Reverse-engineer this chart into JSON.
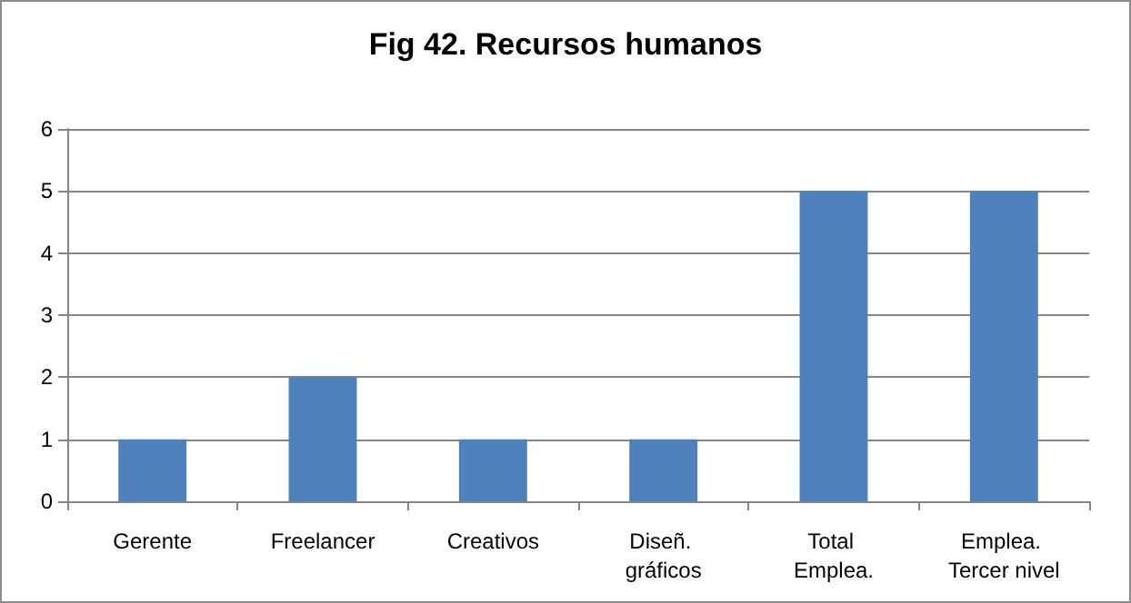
{
  "chart_data": {
    "type": "bar",
    "title": "Fig 42. Recursos humanos",
    "categories": [
      "Gerente",
      "Freelancer",
      "Creativos",
      "Diseñ. gráficos",
      "Total Emplea.",
      "Emplea. Tercer nivel"
    ],
    "series": [
      {
        "color": "#4f81bd",
        "values": [
          1,
          2,
          1,
          1,
          5,
          5
        ]
      }
    ],
    "ylim": [
      0,
      6
    ],
    "yticks": [
      0,
      1,
      2,
      3,
      4,
      5,
      6
    ],
    "grid": "y"
  }
}
